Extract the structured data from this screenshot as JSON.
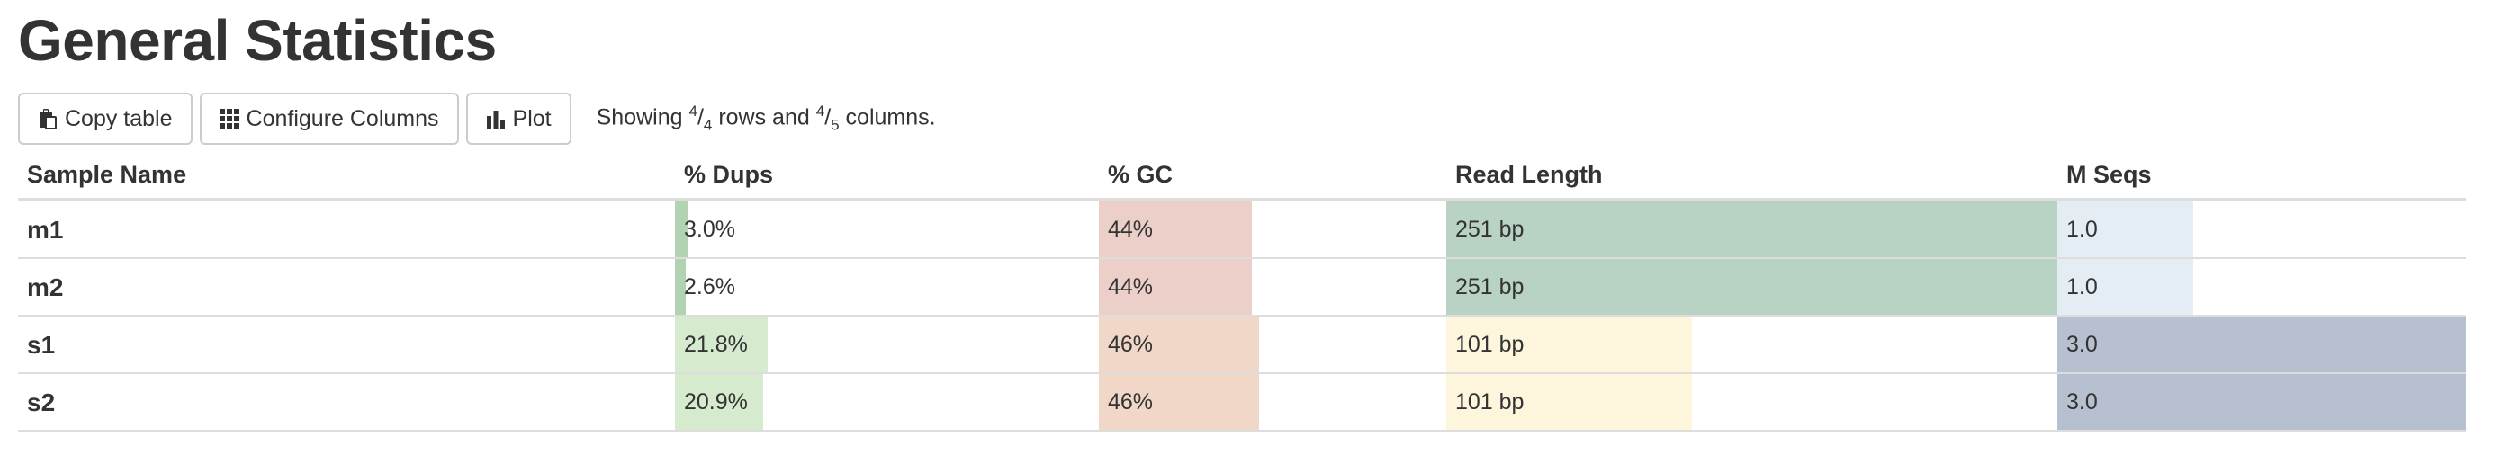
{
  "page_title": "General Statistics",
  "toolbar": {
    "copy_label": "Copy table",
    "configure_label": "Configure Columns",
    "plot_label": "Plot",
    "showing_prefix": "Showing ",
    "rows_shown": "4",
    "rows_total": "4",
    "rows_word": " rows and ",
    "cols_shown": "4",
    "cols_total": "5",
    "cols_word": " columns."
  },
  "table": {
    "columns": [
      {
        "key": "sample",
        "label": "Sample Name"
      },
      {
        "key": "dups",
        "label": "% Dups",
        "max": 100,
        "colors": [
          "#b2d3b2",
          "#d6ebce"
        ]
      },
      {
        "key": "gc",
        "label": "% GC",
        "max": 100,
        "colors": [
          "#ebcfc8",
          "#f0d7c8"
        ]
      },
      {
        "key": "read_length",
        "label": "Read Length",
        "max": 251,
        "colors": [
          "#b8d2c3",
          "#fdf5dc"
        ]
      },
      {
        "key": "m_seqs",
        "label": "M Seqs",
        "max": 3.0,
        "colors": [
          "#e5edf4",
          "#b7c0d0"
        ]
      }
    ],
    "rows": [
      {
        "sample": "m1",
        "dups_text": "3.0%",
        "dups_value": 3.0,
        "gc_text": "44%",
        "gc_value": 44,
        "read_length_text": "251 bp",
        "read_length_value": 251,
        "m_seqs_text": "1.0",
        "m_seqs_value": 1.0
      },
      {
        "sample": "m2",
        "dups_text": "2.6%",
        "dups_value": 2.6,
        "gc_text": "44%",
        "gc_value": 44,
        "read_length_text": "251 bp",
        "read_length_value": 251,
        "m_seqs_text": "1.0",
        "m_seqs_value": 1.0
      },
      {
        "sample": "s1",
        "dups_text": "21.8%",
        "dups_value": 21.8,
        "gc_text": "46%",
        "gc_value": 46,
        "read_length_text": "101 bp",
        "read_length_value": 101,
        "m_seqs_text": "3.0",
        "m_seqs_value": 3.0
      },
      {
        "sample": "s2",
        "dups_text": "20.9%",
        "dups_value": 20.9,
        "gc_text": "46%",
        "gc_value": 46,
        "read_length_text": "101 bp",
        "read_length_value": 101,
        "m_seqs_text": "3.0",
        "m_seqs_value": 3.0
      }
    ]
  }
}
